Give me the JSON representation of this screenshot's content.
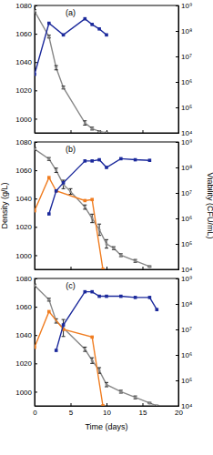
{
  "chart_data": [
    {
      "type": "line",
      "title": "(a)",
      "xlim": [
        0,
        20
      ],
      "xticks": [
        0,
        5,
        10,
        15,
        20
      ],
      "ylim": [
        990,
        1080
      ],
      "yticks": [
        1000,
        1020,
        1040,
        1060,
        1080
      ],
      "y2lim": [
        10000,
        1000000000
      ],
      "y2ticks": [
        {
          "value": 10000,
          "label": "10⁴"
        },
        {
          "value": 100000,
          "label": "10⁵"
        },
        {
          "value": 1000000,
          "label": "10⁶"
        },
        {
          "value": 10000000,
          "label": "10⁷"
        },
        {
          "value": 100000000,
          "label": "10⁸"
        },
        {
          "value": 1000000000,
          "label": "10⁹"
        }
      ],
      "log": "y",
      "tick_labels": "y",
      "series": [
        {
          "color": "#888888",
          "marker": "circle",
          "x": [
            0,
            2,
            3,
            4,
            7,
            8,
            9,
            10
          ],
          "values": [
            1076,
            1058,
            1036,
            1022,
            997,
            993,
            991,
            990
          ],
          "errors": [
            1,
            1,
            1.5,
            1,
            1.5,
            1,
            0.5,
            0.5
          ]
        },
        {
          "color": "#1c2a9c",
          "marker": "square",
          "axis": "y2",
          "x": [
            0,
            2,
            4,
            7,
            8,
            9,
            10
          ],
          "values": [
            2000000,
            200000000,
            70000000,
            300000000,
            180000000,
            120000000,
            70000000
          ]
        }
      ]
    },
    {
      "type": "line",
      "title": "(b)",
      "ylabel": "Density (g/L)",
      "y2label": "Viability (CFU/mL)",
      "xlim": [
        0,
        20
      ],
      "xticks": [
        0,
        5,
        10,
        15,
        20
      ],
      "ylim": [
        990,
        1080
      ],
      "yticks": [
        1000,
        1020,
        1040,
        1060,
        1080
      ],
      "y2lim": [
        10000,
        1000000000
      ],
      "y2ticks": [
        {
          "value": 10000,
          "label": "10⁴"
        },
        {
          "value": 100000,
          "label": "10⁵"
        },
        {
          "value": 1000000,
          "label": "10⁶"
        },
        {
          "value": 10000000,
          "label": "10⁷"
        },
        {
          "value": 100000000,
          "label": "10⁸"
        },
        {
          "value": 1000000000,
          "label": "10⁹"
        }
      ],
      "log": "y",
      "tick_labels": "y",
      "series": [
        {
          "color": "#888888",
          "marker": "circle",
          "x": [
            0,
            2,
            3,
            4,
            5,
            7,
            8,
            9,
            10,
            11,
            12,
            14,
            16
          ],
          "values": [
            1075,
            1068,
            1060,
            1050,
            1045,
            1034,
            1026,
            1018,
            1008,
            1005,
            1000,
            996,
            992
          ],
          "errors": [
            1,
            1,
            1.5,
            3,
            2,
            1.5,
            3,
            4,
            3,
            1,
            1,
            1,
            0.5
          ]
        },
        {
          "color": "#f07d21",
          "marker": "square",
          "axis": "y2",
          "x": [
            0,
            2,
            3,
            7,
            8,
            9.5
          ],
          "values": [
            2000000,
            40000000,
            12000000,
            5000000,
            5500000,
            10000
          ]
        },
        {
          "color": "#1c2a9c",
          "marker": "square",
          "axis": "y2",
          "x": [
            2,
            3,
            4,
            7,
            8,
            9,
            10,
            12,
            14,
            16
          ],
          "values": [
            1500000,
            12000000,
            25000000,
            180000000,
            180000000,
            200000000,
            100000000,
            220000000,
            200000000,
            190000000
          ]
        }
      ]
    },
    {
      "type": "line",
      "title": "(c)",
      "xlabel": "Time (days)",
      "xlim": [
        0,
        20
      ],
      "xticks": [
        0,
        5,
        10,
        15,
        20
      ],
      "ylim": [
        990,
        1080
      ],
      "yticks": [
        1000,
        1020,
        1040,
        1060,
        1080
      ],
      "y2lim": [
        10000,
        1000000000
      ],
      "y2ticks": [
        {
          "value": 10000,
          "label": "10⁴"
        },
        {
          "value": 100000,
          "label": "10⁵"
        },
        {
          "value": 1000000,
          "label": "10⁶"
        },
        {
          "value": 10000000,
          "label": "10⁷"
        },
        {
          "value": 100000000,
          "label": "10⁸"
        },
        {
          "value": 1000000000,
          "label": "10⁹"
        }
      ],
      "log": "y",
      "series": [
        {
          "color": "#888888",
          "marker": "circle",
          "x": [
            0,
            2,
            3,
            4,
            7,
            8,
            9,
            10,
            12,
            14,
            16,
            17
          ],
          "values": [
            1075,
            1065,
            1050,
            1045,
            1030,
            1022,
            1015,
            1005,
            1000,
            996,
            992,
            990
          ],
          "errors": [
            1,
            1,
            1.5,
            6,
            1.5,
            2,
            2,
            1.5,
            1,
            1,
            0.5,
            0.5
          ]
        },
        {
          "color": "#f07d21",
          "marker": "square",
          "axis": "y2",
          "x": [
            0,
            2,
            4,
            8,
            9.5
          ],
          "values": [
            2000000,
            50000000,
            10000000,
            5000000,
            10000
          ]
        },
        {
          "color": "#1c2a9c",
          "marker": "square",
          "axis": "y2",
          "x": [
            3,
            4,
            7,
            8,
            9,
            10,
            12,
            14,
            16,
            17
          ],
          "values": [
            1500000,
            15000000,
            300000000,
            300000000,
            200000000,
            200000000,
            200000000,
            180000000,
            180000000,
            60000000
          ]
        }
      ]
    }
  ]
}
